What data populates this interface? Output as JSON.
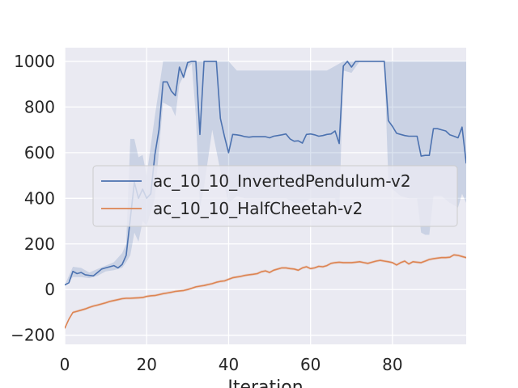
{
  "chart_data": {
    "type": "line",
    "title": "",
    "xlabel": "Iteration",
    "ylabel": "",
    "xlim": [
      0,
      98
    ],
    "ylim": [
      -240,
      1060
    ],
    "xticks": [
      0,
      20,
      40,
      60,
      80
    ],
    "yticks": [
      -200,
      0,
      200,
      400,
      600,
      800,
      1000
    ],
    "xtick_labels": [
      "0",
      "20",
      "40",
      "60",
      "80"
    ],
    "ytick_labels": [
      "−200",
      "0",
      "200",
      "400",
      "600",
      "800",
      "1000"
    ],
    "grid": true,
    "legend_position": "center-right",
    "series": [
      {
        "name": "ac_10_10_InvertedPendulum-v2",
        "color": "#4c72b0",
        "points": [
          [
            0,
            20
          ],
          [
            1,
            30
          ],
          [
            2,
            80
          ],
          [
            3,
            70
          ],
          [
            4,
            75
          ],
          [
            5,
            65
          ],
          [
            6,
            62
          ],
          [
            7,
            60
          ],
          [
            8,
            75
          ],
          [
            9,
            90
          ],
          [
            10,
            95
          ],
          [
            11,
            100
          ],
          [
            12,
            105
          ],
          [
            13,
            95
          ],
          [
            14,
            110
          ],
          [
            15,
            150
          ],
          [
            16,
            310
          ],
          [
            17,
            470
          ],
          [
            18,
            400
          ],
          [
            19,
            440
          ],
          [
            20,
            400
          ],
          [
            21,
            420
          ],
          [
            22,
            590
          ],
          [
            23,
            700
          ],
          [
            24,
            910
          ],
          [
            25,
            910
          ],
          [
            26,
            870
          ],
          [
            27,
            850
          ],
          [
            28,
            975
          ],
          [
            29,
            930
          ],
          [
            30,
            995
          ],
          [
            31,
            1000
          ],
          [
            32,
            1000
          ],
          [
            33,
            680
          ],
          [
            34,
            1000
          ],
          [
            35,
            1000
          ],
          [
            36,
            1000
          ],
          [
            37,
            1000
          ],
          [
            38,
            750
          ],
          [
            39,
            670
          ],
          [
            40,
            600
          ],
          [
            41,
            680
          ],
          [
            42,
            678
          ],
          [
            43,
            675
          ],
          [
            44,
            670
          ],
          [
            45,
            668
          ],
          [
            46,
            670
          ],
          [
            47,
            670
          ],
          [
            48,
            670
          ],
          [
            49,
            670
          ],
          [
            50,
            665
          ],
          [
            51,
            672
          ],
          [
            52,
            675
          ],
          [
            53,
            678
          ],
          [
            54,
            682
          ],
          [
            55,
            660
          ],
          [
            56,
            650
          ],
          [
            57,
            652
          ],
          [
            58,
            642
          ],
          [
            59,
            680
          ],
          [
            60,
            682
          ],
          [
            61,
            678
          ],
          [
            62,
            672
          ],
          [
            63,
            675
          ],
          [
            64,
            680
          ],
          [
            65,
            682
          ],
          [
            66,
            695
          ],
          [
            67,
            640
          ],
          [
            68,
            980
          ],
          [
            69,
            1000
          ],
          [
            70,
            975
          ],
          [
            71,
            1000
          ],
          [
            72,
            1000
          ],
          [
            73,
            1000
          ],
          [
            74,
            1000
          ],
          [
            75,
            1000
          ],
          [
            76,
            1000
          ],
          [
            77,
            1000
          ],
          [
            78,
            1000
          ],
          [
            79,
            740
          ],
          [
            80,
            715
          ],
          [
            81,
            685
          ],
          [
            82,
            680
          ],
          [
            83,
            675
          ],
          [
            84,
            672
          ],
          [
            85,
            672
          ],
          [
            86,
            672
          ],
          [
            87,
            585
          ],
          [
            88,
            588
          ],
          [
            89,
            588
          ],
          [
            90,
            705
          ],
          [
            91,
            705
          ],
          [
            92,
            700
          ],
          [
            93,
            695
          ],
          [
            94,
            678
          ],
          [
            95,
            672
          ],
          [
            96,
            665
          ],
          [
            97,
            712
          ],
          [
            98,
            555
          ],
          [
            99,
            635
          ]
        ],
        "band_upper": [
          [
            0,
            20
          ],
          [
            2,
            100
          ],
          [
            4,
            95
          ],
          [
            6,
            75
          ],
          [
            8,
            90
          ],
          [
            10,
            105
          ],
          [
            12,
            120
          ],
          [
            14,
            160
          ],
          [
            15,
            200
          ],
          [
            16,
            660
          ],
          [
            17,
            660
          ],
          [
            18,
            580
          ],
          [
            19,
            590
          ],
          [
            20,
            500
          ],
          [
            22,
            760
          ],
          [
            24,
            1000
          ],
          [
            40,
            1000
          ],
          [
            42,
            960
          ],
          [
            44,
            960
          ],
          [
            46,
            960
          ],
          [
            48,
            960
          ],
          [
            50,
            960
          ],
          [
            52,
            960
          ],
          [
            54,
            960
          ],
          [
            56,
            960
          ],
          [
            58,
            960
          ],
          [
            60,
            960
          ],
          [
            62,
            960
          ],
          [
            64,
            960
          ],
          [
            66,
            980
          ],
          [
            68,
            1000
          ],
          [
            80,
            1000
          ],
          [
            86,
            1000
          ],
          [
            87,
            1000
          ],
          [
            90,
            1000
          ],
          [
            95,
            1000
          ],
          [
            97,
            1000
          ],
          [
            98,
            1000
          ],
          [
            99,
            1000
          ]
        ],
        "band_lower": [
          [
            0,
            20
          ],
          [
            2,
            55
          ],
          [
            4,
            55
          ],
          [
            6,
            50
          ],
          [
            8,
            60
          ],
          [
            10,
            80
          ],
          [
            12,
            85
          ],
          [
            14,
            95
          ],
          [
            15,
            120
          ],
          [
            16,
            150
          ],
          [
            17,
            250
          ],
          [
            18,
            210
          ],
          [
            19,
            300
          ],
          [
            20,
            280
          ],
          [
            22,
            400
          ],
          [
            24,
            820
          ],
          [
            25,
            810
          ],
          [
            26,
            800
          ],
          [
            27,
            760
          ],
          [
            28,
            900
          ],
          [
            30,
            970
          ],
          [
            31,
            990
          ],
          [
            32,
            760
          ],
          [
            33,
            360
          ],
          [
            34,
            450
          ],
          [
            36,
            700
          ],
          [
            38,
            520
          ],
          [
            40,
            380
          ],
          [
            42,
            410
          ],
          [
            44,
            400
          ],
          [
            46,
            400
          ],
          [
            48,
            400
          ],
          [
            50,
            400
          ],
          [
            52,
            400
          ],
          [
            54,
            400
          ],
          [
            56,
            380
          ],
          [
            58,
            380
          ],
          [
            60,
            400
          ],
          [
            62,
            400
          ],
          [
            64,
            400
          ],
          [
            66,
            400
          ],
          [
            67,
            330
          ],
          [
            68,
            960
          ],
          [
            70,
            950
          ],
          [
            72,
            1000
          ],
          [
            78,
            1000
          ],
          [
            79,
            480
          ],
          [
            80,
            440
          ],
          [
            82,
            410
          ],
          [
            84,
            400
          ],
          [
            86,
            400
          ],
          [
            87,
            250
          ],
          [
            88,
            240
          ],
          [
            89,
            240
          ],
          [
            90,
            410
          ],
          [
            92,
            410
          ],
          [
            94,
            380
          ],
          [
            95,
            370
          ],
          [
            96,
            360
          ],
          [
            97,
            420
          ],
          [
            98,
            380
          ],
          [
            99,
            390
          ]
        ]
      },
      {
        "name": "ac_10_10_HalfCheetah-v2",
        "color": "#dd8452",
        "points": [
          [
            0,
            -170
          ],
          [
            1,
            -130
          ],
          [
            2,
            -100
          ],
          [
            3,
            -95
          ],
          [
            4,
            -90
          ],
          [
            5,
            -85
          ],
          [
            6,
            -78
          ],
          [
            7,
            -72
          ],
          [
            8,
            -68
          ],
          [
            9,
            -63
          ],
          [
            10,
            -58
          ],
          [
            11,
            -52
          ],
          [
            12,
            -48
          ],
          [
            13,
            -44
          ],
          [
            14,
            -40
          ],
          [
            15,
            -38
          ],
          [
            16,
            -38
          ],
          [
            17,
            -37
          ],
          [
            18,
            -36
          ],
          [
            19,
            -35
          ],
          [
            20,
            -30
          ],
          [
            21,
            -27
          ],
          [
            22,
            -26
          ],
          [
            23,
            -22
          ],
          [
            24,
            -18
          ],
          [
            25,
            -15
          ],
          [
            26,
            -12
          ],
          [
            27,
            -8
          ],
          [
            28,
            -6
          ],
          [
            29,
            -4
          ],
          [
            30,
            0
          ],
          [
            31,
            6
          ],
          [
            32,
            12
          ],
          [
            33,
            15
          ],
          [
            34,
            18
          ],
          [
            35,
            22
          ],
          [
            36,
            26
          ],
          [
            37,
            32
          ],
          [
            38,
            36
          ],
          [
            39,
            38
          ],
          [
            40,
            45
          ],
          [
            41,
            52
          ],
          [
            42,
            55
          ],
          [
            43,
            58
          ],
          [
            44,
            62
          ],
          [
            45,
            65
          ],
          [
            46,
            67
          ],
          [
            47,
            70
          ],
          [
            48,
            78
          ],
          [
            49,
            82
          ],
          [
            50,
            75
          ],
          [
            51,
            85
          ],
          [
            52,
            90
          ],
          [
            53,
            95
          ],
          [
            54,
            95
          ],
          [
            55,
            92
          ],
          [
            56,
            90
          ],
          [
            57,
            85
          ],
          [
            58,
            95
          ],
          [
            59,
            100
          ],
          [
            60,
            92
          ],
          [
            61,
            95
          ],
          [
            62,
            102
          ],
          [
            63,
            100
          ],
          [
            64,
            105
          ],
          [
            65,
            115
          ],
          [
            66,
            118
          ],
          [
            67,
            120
          ],
          [
            68,
            118
          ],
          [
            69,
            118
          ],
          [
            70,
            118
          ],
          [
            71,
            120
          ],
          [
            72,
            122
          ],
          [
            73,
            118
          ],
          [
            74,
            115
          ],
          [
            75,
            120
          ],
          [
            76,
            125
          ],
          [
            77,
            128
          ],
          [
            78,
            125
          ],
          [
            79,
            122
          ],
          [
            80,
            118
          ],
          [
            81,
            108
          ],
          [
            82,
            118
          ],
          [
            83,
            125
          ],
          [
            84,
            112
          ],
          [
            85,
            122
          ],
          [
            86,
            120
          ],
          [
            87,
            118
          ],
          [
            88,
            125
          ],
          [
            89,
            132
          ],
          [
            90,
            135
          ],
          [
            91,
            138
          ],
          [
            92,
            140
          ],
          [
            93,
            140
          ],
          [
            94,
            142
          ],
          [
            95,
            152
          ],
          [
            96,
            150
          ],
          [
            97,
            145
          ],
          [
            98,
            140
          ],
          [
            99,
            148
          ]
        ]
      }
    ]
  }
}
